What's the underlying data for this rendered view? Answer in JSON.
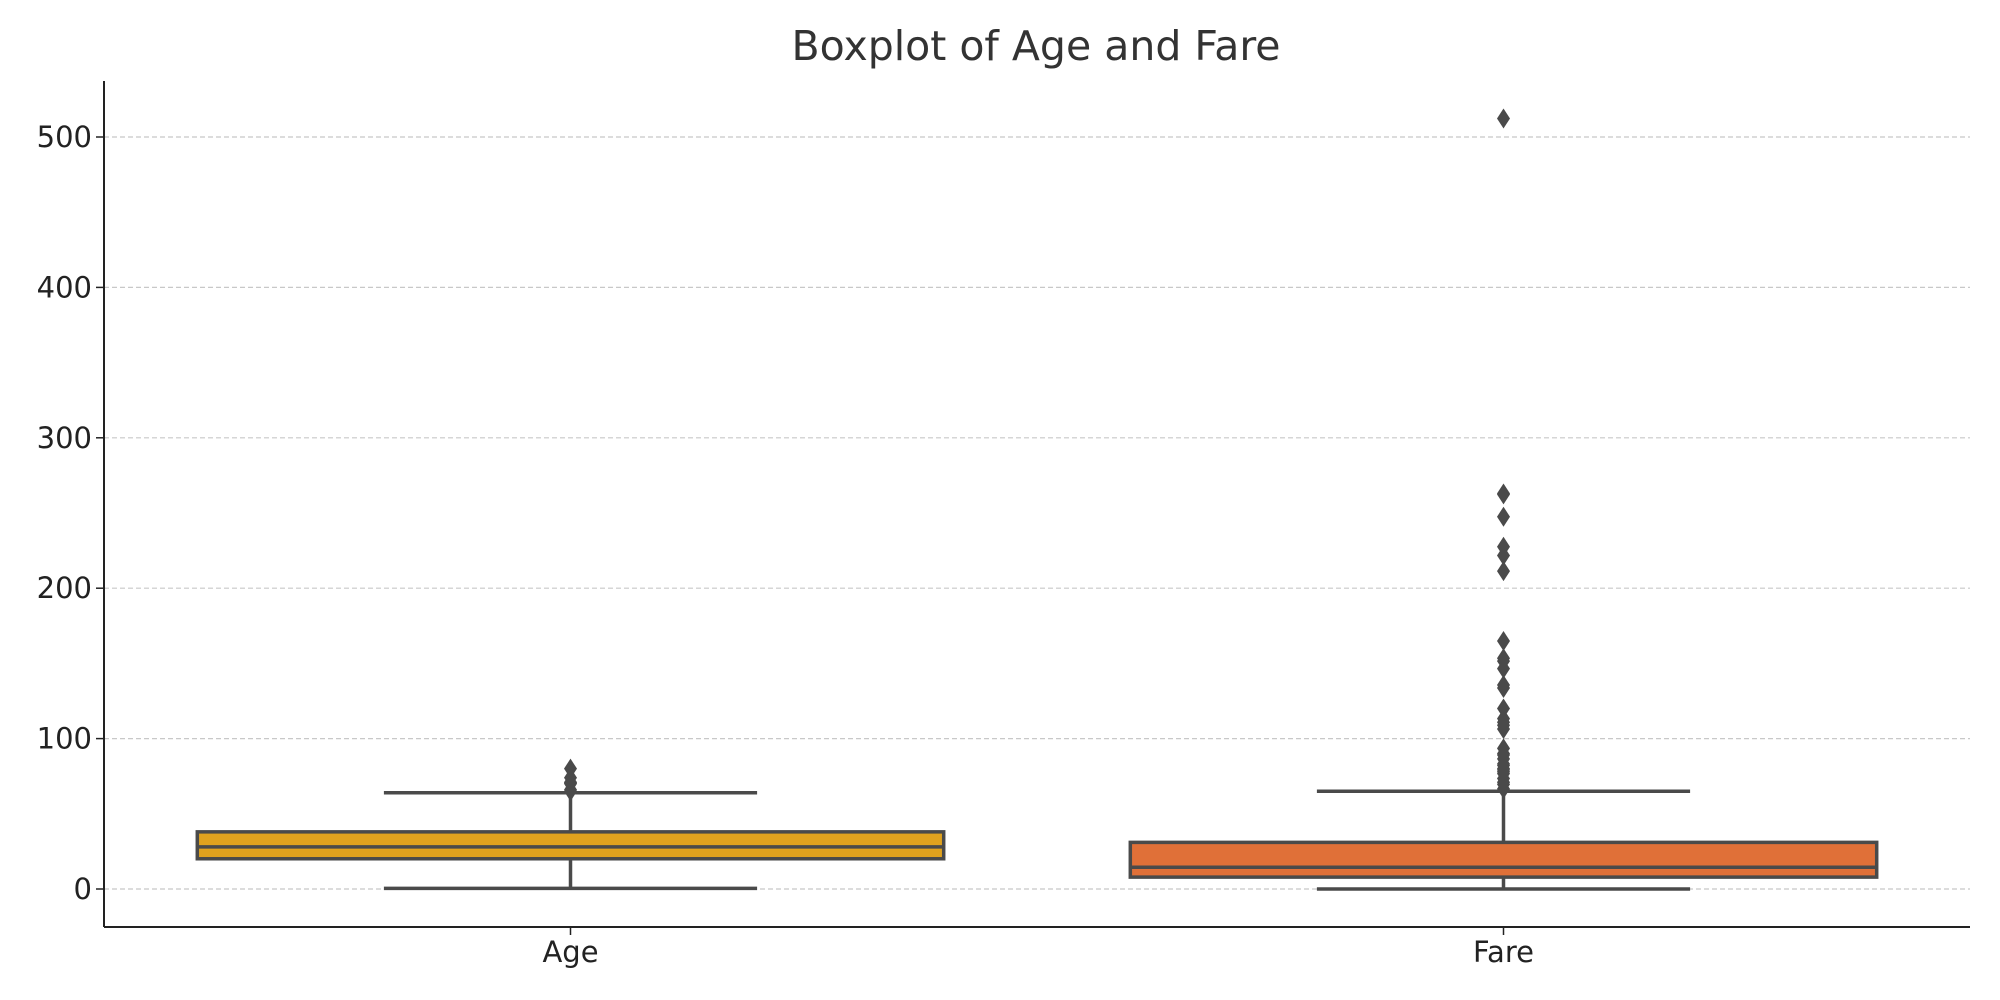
{
  "chart_data": {
    "type": "boxplot",
    "title": "Boxplot of Age and Fare",
    "xlabel": "",
    "ylabel": "",
    "ylim": [
      -25,
      540
    ],
    "yticks": [
      0,
      100,
      200,
      300,
      400,
      500
    ],
    "categories": [
      "Age",
      "Fare"
    ],
    "grid": {
      "y": true,
      "style": "dashed"
    },
    "boxes": [
      {
        "category": "Age",
        "color": "#E0A21E",
        "whisker_low": 0.42,
        "q1": 20.1,
        "median": 28,
        "q3": 38,
        "whisker_high": 64,
        "outliers": [
          65,
          66,
          70,
          70.5,
          71,
          74,
          80
        ]
      },
      {
        "category": "Fare",
        "color": "#E07038",
        "whisker_low": 0,
        "q1": 7.9,
        "median": 14.45,
        "q3": 31,
        "whisker_high": 65,
        "outliers": [
          66.6,
          69.55,
          71,
          73.5,
          76.7,
          77.96,
          79.2,
          80,
          82.2,
          83.16,
          86.5,
          89.1,
          90,
          93.5,
          106.4,
          108.9,
          110.9,
          113.3,
          120,
          133.65,
          135.6,
          146.5,
          151.55,
          153.46,
          164.87,
          211.34,
          221.78,
          227.53,
          247.52,
          262.38,
          263,
          512.33
        ]
      }
    ]
  },
  "colors": {
    "axis": "#222222",
    "grid": "#c8c8c8",
    "box_edge": "#4a4a4a"
  }
}
